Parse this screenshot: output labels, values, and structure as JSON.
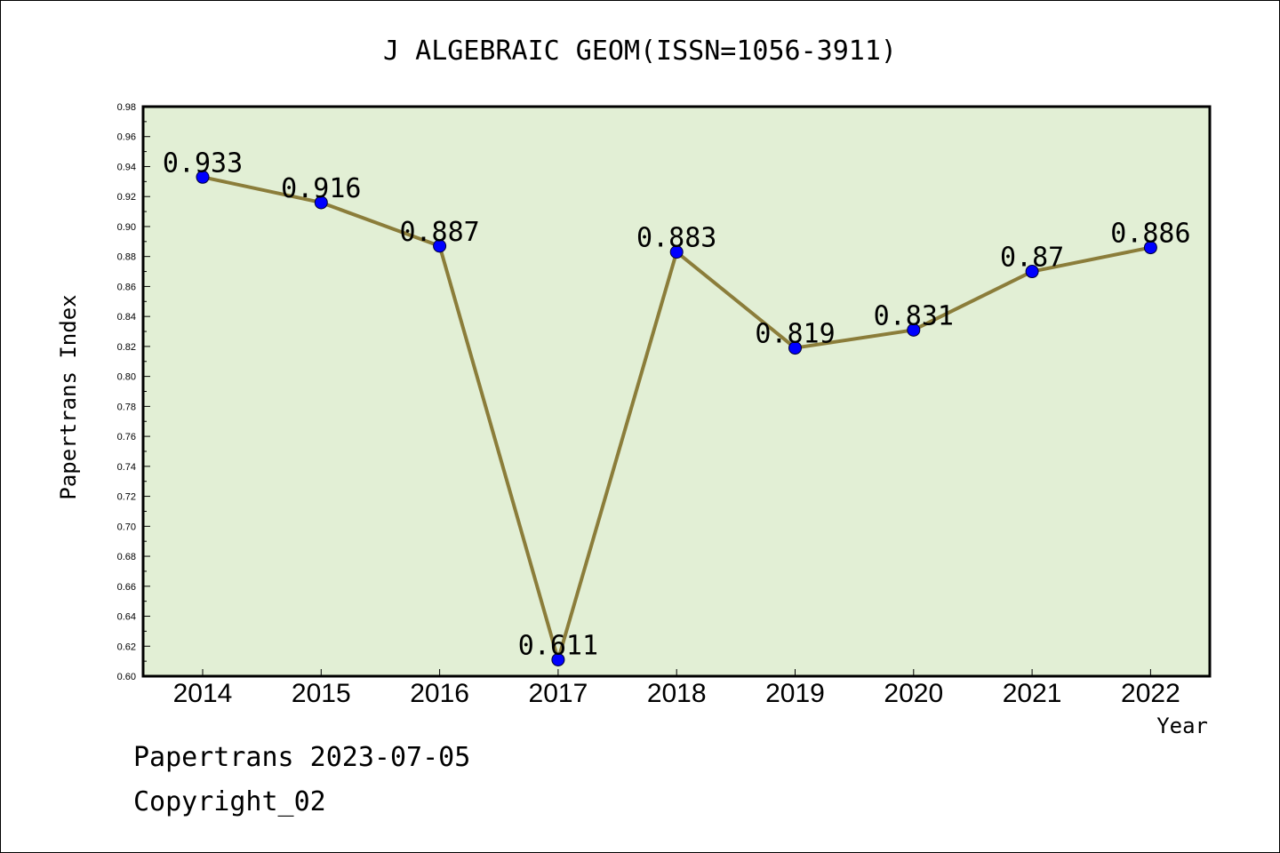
{
  "chart_data": {
    "type": "line",
    "title": "J ALGEBRAIC GEOM(ISSN=1056-3911)",
    "xlabel": "Year",
    "ylabel": "Papertrans Index",
    "categories": [
      "2014",
      "2015",
      "2016",
      "2017",
      "2018",
      "2019",
      "2020",
      "2021",
      "2022"
    ],
    "series": [
      {
        "values": [
          0.933,
          0.916,
          0.887,
          0.611,
          0.883,
          0.819,
          0.831,
          0.87,
          0.886
        ]
      }
    ],
    "data_labels": [
      "0.933",
      "0.916",
      "0.887",
      "0.611",
      "0.883",
      "0.819",
      "0.831",
      "0.87",
      "0.886"
    ],
    "ylim": [
      0.6,
      0.98
    ],
    "yticks": [
      "0.60",
      "0.62",
      "0.64",
      "0.66",
      "0.68",
      "0.70",
      "0.72",
      "0.74",
      "0.76",
      "0.78",
      "0.80",
      "0.82",
      "0.84",
      "0.86",
      "0.88",
      "0.90",
      "0.92",
      "0.94",
      "0.96",
      "0.98"
    ],
    "grid": false,
    "colors": {
      "plot_bg": "#e2efd5",
      "line": "#8b7d3a",
      "marker": "#0000ff"
    }
  },
  "footer": {
    "line1": "Papertrans 2023-07-05",
    "line2": "Copyright_02"
  }
}
